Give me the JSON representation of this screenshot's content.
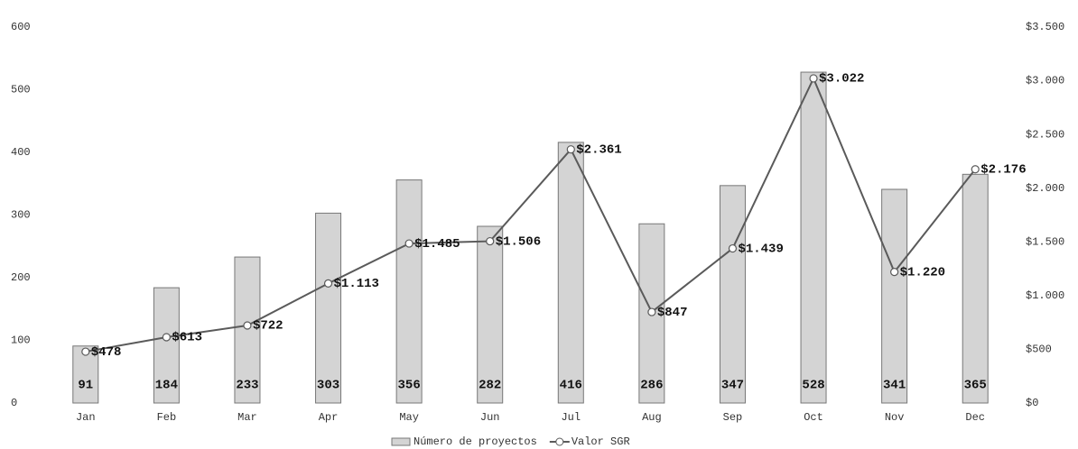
{
  "chart_data": {
    "type": "combo",
    "categories": [
      "Jan",
      "Feb",
      "Mar",
      "Apr",
      "May",
      "Jun",
      "Jul",
      "Aug",
      "Sep",
      "Oct",
      "Nov",
      "Dec"
    ],
    "series": [
      {
        "name": "Número de proyectos",
        "type": "bar",
        "color": "#d4d4d4",
        "values": [
          91,
          184,
          233,
          303,
          356,
          282,
          416,
          286,
          347,
          528,
          341,
          365
        ]
      },
      {
        "name": "Valor SGR",
        "type": "line",
        "axis": "y2",
        "color": "#5a5a5a",
        "values": [
          478,
          613,
          722,
          1113,
          1485,
          1506,
          2361,
          847,
          1439,
          3022,
          1220,
          2176
        ],
        "value_labels": [
          "$478",
          "$613",
          "$722",
          "$1.113",
          "$1.485",
          "$1.506",
          "$2.361",
          "$847",
          "$1.439",
          "$3.022",
          "$1.220",
          "$2.176"
        ]
      }
    ],
    "ylim": [
      0,
      600
    ],
    "yticks": [
      0,
      100,
      200,
      300,
      400,
      500,
      600
    ],
    "y2lim": [
      0,
      3500
    ],
    "y2ticks": [
      {
        "value": 0,
        "label": "$0"
      },
      {
        "value": 500,
        "label": "$500"
      },
      {
        "value": 1000,
        "label": "$1.000"
      },
      {
        "value": 1500,
        "label": "$1.500"
      },
      {
        "value": 2000,
        "label": "$2.000"
      },
      {
        "value": 2500,
        "label": "$2.500"
      },
      {
        "value": 3000,
        "label": "$3.000"
      },
      {
        "value": 3500,
        "label": "$3.500"
      }
    ],
    "grid": false,
    "legend": "bottom"
  }
}
